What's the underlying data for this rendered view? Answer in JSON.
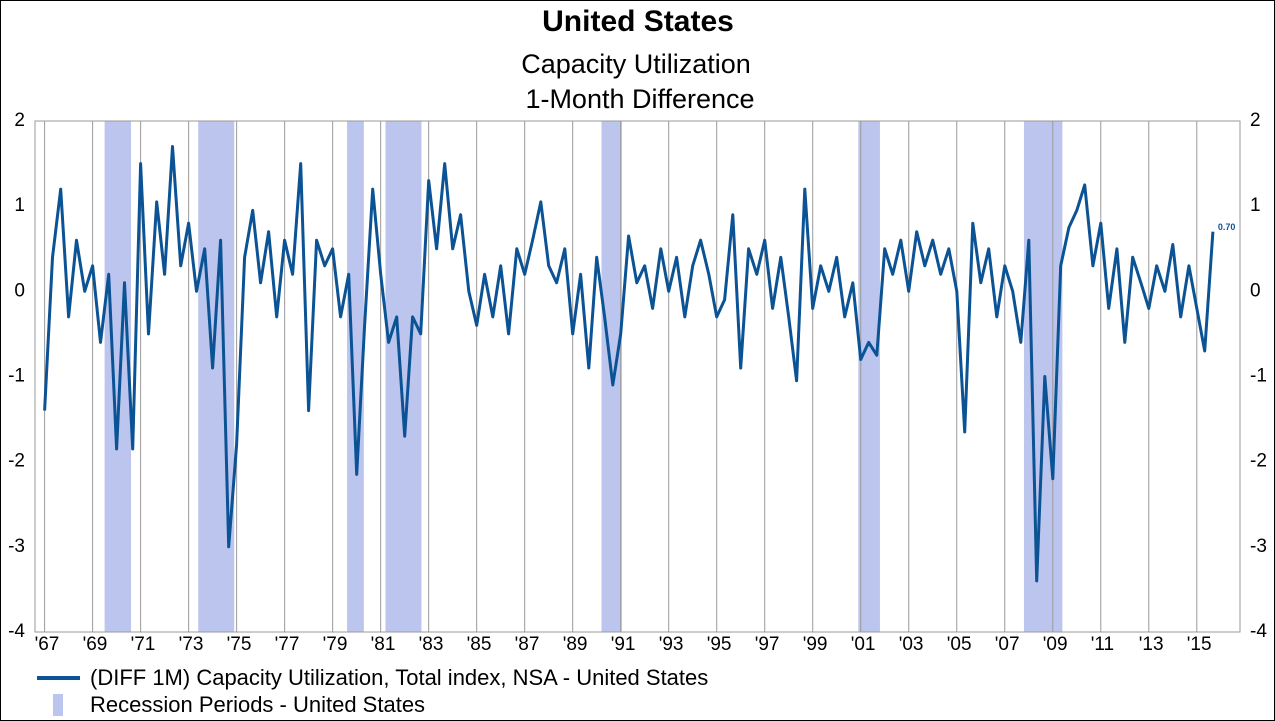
{
  "chart_data": {
    "type": "line",
    "title": "United States",
    "subtitle": [
      "Capacity Utilization",
      "1-Month Difference"
    ],
    "xlim": [
      1966.6,
      2016.8
    ],
    "ylim": [
      -4,
      2
    ],
    "yticks": [
      2,
      1,
      0,
      -1,
      -2,
      -3,
      -4
    ],
    "y2lim": [
      -4,
      2
    ],
    "y2ticks": [
      2,
      1,
      0,
      -1,
      -2,
      -3,
      -4
    ],
    "xticks": [
      {
        "value": 1967,
        "label": "'67"
      },
      {
        "value": 1969,
        "label": "'69"
      },
      {
        "value": 1971,
        "label": "'71"
      },
      {
        "value": 1973,
        "label": "'73"
      },
      {
        "value": 1975,
        "label": "'75"
      },
      {
        "value": 1977,
        "label": "'77"
      },
      {
        "value": 1979,
        "label": "'79"
      },
      {
        "value": 1981,
        "label": "'81"
      },
      {
        "value": 1983,
        "label": "'83"
      },
      {
        "value": 1985,
        "label": "'85"
      },
      {
        "value": 1987,
        "label": "'87"
      },
      {
        "value": 1989,
        "label": "'89"
      },
      {
        "value": 1991,
        "label": "'91"
      },
      {
        "value": 1993,
        "label": "'93"
      },
      {
        "value": 1995,
        "label": "'95"
      },
      {
        "value": 1997,
        "label": "'97"
      },
      {
        "value": 1999,
        "label": "'99"
      },
      {
        "value": 2001,
        "label": "'01"
      },
      {
        "value": 2003,
        "label": "'03"
      },
      {
        "value": 2005,
        "label": "'05"
      },
      {
        "value": 2007,
        "label": "'07"
      },
      {
        "value": 2009,
        "label": "'09"
      },
      {
        "value": 2011,
        "label": "'11"
      },
      {
        "value": 2013,
        "label": "'13"
      },
      {
        "value": 2015,
        "label": "'15"
      }
    ],
    "grid": true,
    "series": [
      {
        "name": "(DIFF 1M) Capacity Utilization, Total index, NSA - United States",
        "color": "#0b5394",
        "x": [
          1967,
          1967.33,
          1967.67,
          1968,
          1968.33,
          1968.67,
          1969,
          1969.33,
          1969.67,
          1970,
          1970.33,
          1970.67,
          1971,
          1971.33,
          1971.67,
          1972,
          1972.33,
          1972.67,
          1973,
          1973.33,
          1973.67,
          1974,
          1974.33,
          1974.67,
          1975,
          1975.33,
          1975.67,
          1976,
          1976.33,
          1976.67,
          1977,
          1977.33,
          1977.67,
          1978,
          1978.33,
          1978.67,
          1979,
          1979.33,
          1979.67,
          1980,
          1980.33,
          1980.67,
          1981,
          1981.33,
          1981.67,
          1982,
          1982.33,
          1982.67,
          1983,
          1983.33,
          1983.67,
          1984,
          1984.33,
          1984.67,
          1985,
          1985.33,
          1985.67,
          1986,
          1986.33,
          1986.67,
          1987,
          1987.33,
          1987.67,
          1988,
          1988.33,
          1988.67,
          1989,
          1989.33,
          1989.67,
          1990,
          1990.33,
          1990.67,
          1991,
          1991.33,
          1991.67,
          1992,
          1992.33,
          1992.67,
          1993,
          1993.33,
          1993.67,
          1994,
          1994.33,
          1994.67,
          1995,
          1995.33,
          1995.67,
          1996,
          1996.33,
          1996.67,
          1997,
          1997.33,
          1997.67,
          1998,
          1998.33,
          1998.67,
          1999,
          1999.33,
          1999.67,
          2000,
          2000.33,
          2000.67,
          2001,
          2001.33,
          2001.67,
          2002,
          2002.33,
          2002.67,
          2003,
          2003.33,
          2003.67,
          2004,
          2004.33,
          2004.67,
          2005,
          2005.33,
          2005.67,
          2006,
          2006.33,
          2006.67,
          2007,
          2007.33,
          2007.67,
          2008,
          2008.33,
          2008.67,
          2009,
          2009.33,
          2009.67,
          2010,
          2010.33,
          2010.67,
          2011,
          2011.33,
          2011.67,
          2012,
          2012.33,
          2012.67,
          2013,
          2013.33,
          2013.67,
          2014,
          2014.33,
          2014.67,
          2015,
          2015.33,
          2015.67
        ],
        "values": [
          -1.4,
          0.4,
          1.2,
          -0.3,
          0.6,
          0.0,
          0.3,
          -0.6,
          0.2,
          -1.85,
          0.1,
          -1.85,
          1.5,
          -0.5,
          1.05,
          0.2,
          1.7,
          0.3,
          0.8,
          0.0,
          0.5,
          -0.9,
          0.6,
          -3.0,
          -1.8,
          0.4,
          0.95,
          0.1,
          0.7,
          -0.3,
          0.6,
          0.2,
          1.5,
          -1.4,
          0.6,
          0.3,
          0.5,
          -0.3,
          0.2,
          -2.15,
          -0.4,
          1.2,
          0.2,
          -0.6,
          -0.3,
          -1.7,
          -0.3,
          -0.5,
          1.3,
          0.5,
          1.5,
          0.5,
          0.9,
          0.0,
          -0.4,
          0.2,
          -0.3,
          0.3,
          -0.5,
          0.5,
          0.2,
          0.6,
          1.05,
          0.3,
          0.1,
          0.5,
          -0.5,
          0.2,
          -0.9,
          0.4,
          -0.3,
          -1.1,
          -0.5,
          0.65,
          0.1,
          0.3,
          -0.2,
          0.5,
          0.0,
          0.4,
          -0.3,
          0.3,
          0.6,
          0.2,
          -0.3,
          -0.1,
          0.9,
          -0.9,
          0.5,
          0.2,
          0.6,
          -0.2,
          0.4,
          -0.3,
          -1.05,
          1.2,
          -0.2,
          0.3,
          0.0,
          0.4,
          -0.3,
          0.1,
          -0.8,
          -0.6,
          -0.75,
          0.5,
          0.2,
          0.6,
          0.0,
          0.7,
          0.3,
          0.6,
          0.2,
          0.5,
          0.0,
          -1.65,
          0.8,
          0.1,
          0.5,
          -0.3,
          0.3,
          0.0,
          -0.6,
          0.6,
          -3.4,
          -1.0,
          -2.2,
          0.3,
          0.75,
          0.95,
          1.25,
          0.3,
          0.8,
          -0.2,
          0.5,
          -0.6,
          0.4,
          0.1,
          -0.2,
          0.3,
          0.0,
          0.55,
          -0.3,
          0.3,
          -0.2,
          -0.7,
          0.7
        ],
        "value_labels": [
          null,
          null,
          null,
          null,
          null,
          null,
          null,
          null,
          null,
          null,
          null,
          null,
          null,
          null,
          null,
          null,
          null,
          null,
          null,
          null,
          null,
          null,
          null,
          null,
          null,
          null,
          null,
          null,
          null,
          null,
          null,
          null,
          null,
          null,
          null,
          null,
          null,
          null,
          null,
          null,
          null,
          null,
          null,
          null,
          null,
          null,
          null,
          null,
          null,
          null,
          null,
          null,
          null,
          null,
          null,
          null,
          null,
          null,
          null,
          null,
          null,
          null,
          null,
          null,
          null,
          null,
          null,
          null,
          null,
          null,
          null,
          null,
          null,
          null,
          null,
          null,
          null,
          null,
          null,
          null,
          null,
          null,
          null,
          null,
          null,
          null,
          null,
          null,
          null,
          null,
          null,
          null,
          null,
          null,
          null,
          null,
          null,
          null,
          null,
          null,
          null,
          null,
          null,
          null,
          null,
          null,
          null,
          null,
          null,
          null,
          null,
          null,
          null,
          null,
          null,
          null,
          null,
          null,
          null,
          null,
          null,
          null,
          null,
          null,
          null,
          null,
          null,
          null,
          null,
          null,
          null,
          null,
          null,
          null,
          null,
          null,
          null,
          null,
          null,
          null,
          null,
          null,
          null,
          null,
          null,
          null,
          "0.70"
        ]
      },
      {
        "name": "Recession Periods - United States",
        "color": "#bcc5ee",
        "periods": [
          [
            1969.5,
            1970.6
          ],
          [
            1973.4,
            1974.9
          ],
          [
            1979.6,
            1980.3
          ],
          [
            1981.2,
            1982.7
          ],
          [
            1990.2,
            1991.05
          ],
          [
            2000.9,
            2001.8
          ],
          [
            2007.8,
            2009.4
          ]
        ]
      }
    ]
  }
}
